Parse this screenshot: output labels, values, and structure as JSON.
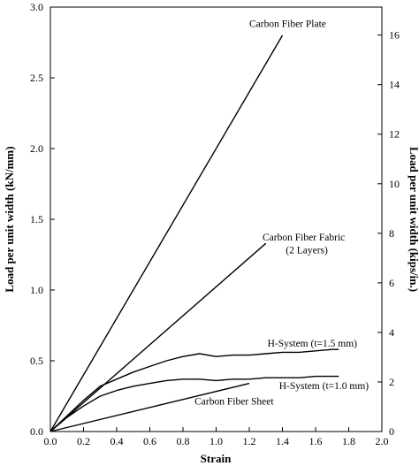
{
  "chart_data": {
    "type": "line",
    "title": "",
    "xlabel": "Strain",
    "ylabel": "Load per unit width (kN/mm)",
    "ylabel_right": "Load per unit width (kips/in.)",
    "xlim": [
      0.0,
      2.0
    ],
    "ylim": [
      0.0,
      3.0
    ],
    "ylim_right": [
      0,
      17.13
    ],
    "xticks": [
      0.0,
      0.2,
      0.4,
      0.6,
      0.8,
      1.0,
      1.2,
      1.4,
      1.6,
      1.8,
      2.0
    ],
    "xtick_labels": [
      "0.0",
      "0.2",
      "0.4",
      "0.6",
      "0.8",
      "1.0",
      "1.2",
      "1.4",
      "1.6",
      "1.8",
      "2.0"
    ],
    "yticks": [
      0.0,
      0.5,
      1.0,
      1.5,
      2.0,
      2.5,
      3.0
    ],
    "ytick_labels": [
      "0.0",
      "0.5",
      "1.0",
      "1.5",
      "2.0",
      "2.5",
      "3.0"
    ],
    "yticks_right": [
      0,
      2,
      4,
      6,
      8,
      10,
      12,
      14,
      16
    ],
    "ytick_labels_right": [
      "0",
      "2",
      "4",
      "6",
      "8",
      "10",
      "12",
      "14",
      "16"
    ],
    "grid": false,
    "legend": "none",
    "series": [
      {
        "name": "Carbon Fiber Plate",
        "x": [
          0.0,
          1.4
        ],
        "y": [
          0.0,
          2.8
        ]
      },
      {
        "name": "Carbon Fiber Fabric (2 Layers)",
        "x": [
          0.0,
          1.3
        ],
        "y": [
          0.0,
          1.33
        ]
      },
      {
        "name": "H-System (t=1.5 mm)",
        "x": [
          0.0,
          0.1,
          0.2,
          0.3,
          0.4,
          0.5,
          0.6,
          0.7,
          0.8,
          0.9,
          1.0,
          1.1,
          1.2,
          1.3,
          1.4,
          1.5,
          1.6,
          1.7,
          1.74
        ],
        "y": [
          0.0,
          0.11,
          0.22,
          0.32,
          0.37,
          0.42,
          0.46,
          0.5,
          0.53,
          0.55,
          0.53,
          0.54,
          0.54,
          0.55,
          0.56,
          0.56,
          0.57,
          0.58,
          0.58
        ]
      },
      {
        "name": "H-System (t=1.0 mm)",
        "x": [
          0.0,
          0.1,
          0.2,
          0.3,
          0.4,
          0.5,
          0.6,
          0.7,
          0.8,
          0.9,
          1.0,
          1.1,
          1.2,
          1.3,
          1.4,
          1.5,
          1.6,
          1.7,
          1.74
        ],
        "y": [
          0.0,
          0.1,
          0.18,
          0.25,
          0.29,
          0.32,
          0.34,
          0.36,
          0.37,
          0.37,
          0.36,
          0.37,
          0.37,
          0.38,
          0.38,
          0.38,
          0.39,
          0.39,
          0.39
        ]
      },
      {
        "name": "Carbon Fiber Sheet",
        "x": [
          0.0,
          1.2
        ],
        "y": [
          0.0,
          0.34
        ]
      }
    ],
    "annotations": [
      {
        "text": "Carbon Fiber Plate",
        "x": 1.2,
        "y": 2.86
      },
      {
        "text": "Carbon Fiber Fabric",
        "x": 1.28,
        "y": 1.35
      },
      {
        "text": "(2 Layers)",
        "x": 1.42,
        "y": 1.26
      },
      {
        "text": "H-System (t=1.5 mm)",
        "x": 1.31,
        "y": 0.6
      },
      {
        "text": "H-System (t=1.0 mm)",
        "x": 1.38,
        "y": 0.3
      },
      {
        "text": "Carbon Fiber Sheet",
        "x": 0.87,
        "y": 0.19
      }
    ],
    "line_color": "#000000"
  }
}
